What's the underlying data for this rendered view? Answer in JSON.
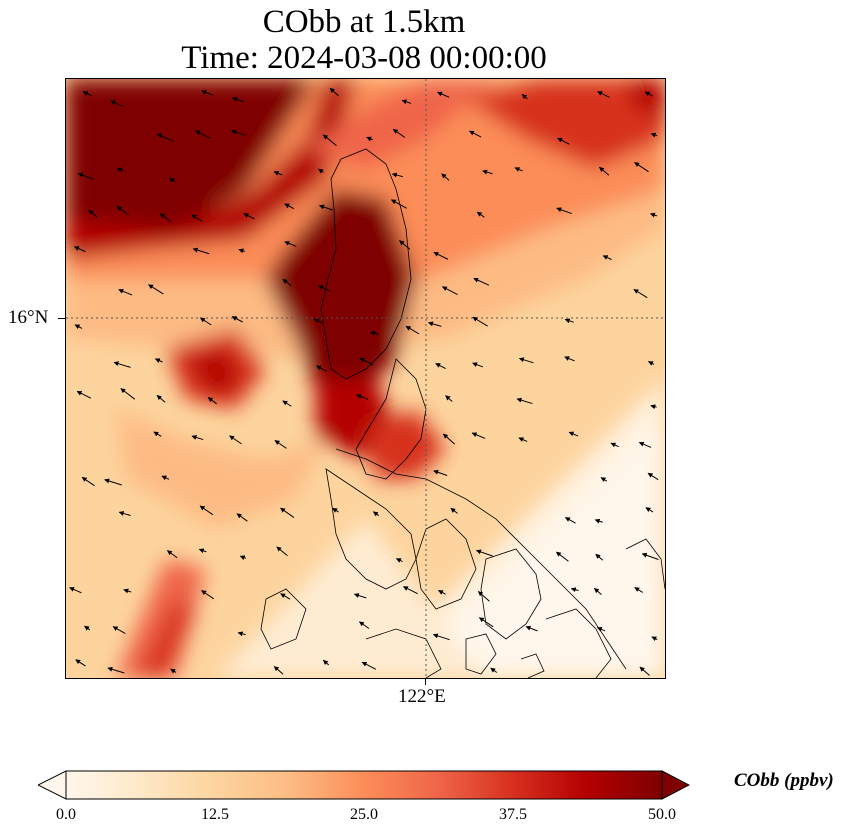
{
  "title": "CObb at 1.5km",
  "subtitle": "Time: 2024-03-08 00:00:00",
  "axes": {
    "lat_tick": "16°N",
    "lon_tick": "122°E",
    "gridlines": "dotted"
  },
  "colorbar": {
    "label": "CObb (ppbv)",
    "ticks": [
      "0.0",
      "12.5",
      "25.0",
      "37.5",
      "50.0"
    ],
    "min": 0,
    "max": 50,
    "extend": "both",
    "colormap": [
      "#fff7ec",
      "#fee8c8",
      "#fdd49e",
      "#fdbb84",
      "#fc8d59",
      "#ef6548",
      "#d7301f",
      "#b30000",
      "#7f0000"
    ]
  },
  "map_content": {
    "field": "CObb concentration",
    "units": "ppbv",
    "vectors": "wind arrows",
    "coastlines": true
  }
}
